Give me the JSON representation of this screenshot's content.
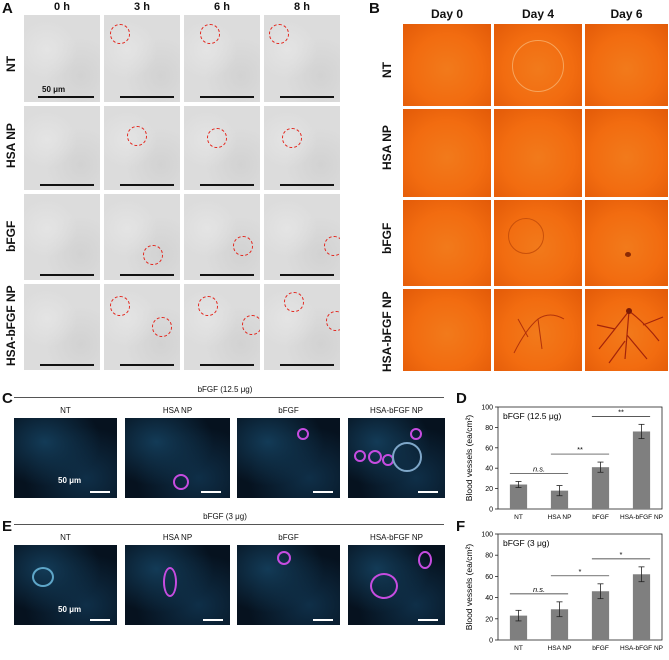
{
  "panelA": {
    "label": "A",
    "columns": [
      "0 h",
      "3 h",
      "6 h",
      "8 h"
    ],
    "rows": [
      "NT",
      "HSA NP",
      "bFGF",
      "HSA-bFGF NP"
    ],
    "scale_label": "50 μm"
  },
  "panelB": {
    "label": "B",
    "columns": [
      "Day 0",
      "Day 4",
      "Day 6"
    ],
    "rows": [
      "NT",
      "HSA NP",
      "bFGF",
      "HSA-bFGF NP"
    ]
  },
  "panelC": {
    "label": "C",
    "header": "bFGF (12.5 μg)",
    "columns": [
      "NT",
      "HSA NP",
      "bFGF",
      "HSA-bFGF NP"
    ],
    "scale_label": "50 μm"
  },
  "panelE": {
    "label": "E",
    "header": "bFGF (3 μg)",
    "columns": [
      "NT",
      "HSA NP",
      "bFGF",
      "HSA-bFGF NP"
    ],
    "scale_label": "50 μm"
  },
  "chart_data": [
    {
      "panel": "D",
      "type": "bar",
      "title": "bFGF (12.5 μg)",
      "ylabel": "Blood vessels (ea/cm²)",
      "categories": [
        "NT",
        "HSA NP",
        "bFGF",
        "HSA-bFGF NP"
      ],
      "values": [
        24,
        18,
        41,
        76
      ],
      "errors": [
        3,
        5,
        5,
        7
      ],
      "ylim": [
        0,
        100
      ],
      "yticks": [
        0,
        20,
        40,
        60,
        80,
        100
      ],
      "annotations": [
        {
          "from": 0,
          "to": 1,
          "text": "n.s."
        },
        {
          "from": 1,
          "to": 2,
          "text": "**"
        },
        {
          "from": 2,
          "to": 3,
          "text": "**"
        }
      ]
    },
    {
      "panel": "F",
      "type": "bar",
      "title": "bFGF (3 μg)",
      "ylabel": "Blood vessels (ea/cm²)",
      "categories": [
        "NT",
        "HSA NP",
        "bFGF",
        "HSA-bFGF NP"
      ],
      "values": [
        23,
        29,
        46,
        62
      ],
      "errors": [
        5,
        7,
        7,
        7
      ],
      "ylim": [
        0,
        100
      ],
      "yticks": [
        0,
        20,
        40,
        60,
        80,
        100
      ],
      "annotations": [
        {
          "from": 0,
          "to": 1,
          "text": "n.s."
        },
        {
          "from": 1,
          "to": 2,
          "text": "*"
        },
        {
          "from": 2,
          "to": 3,
          "text": "*"
        }
      ]
    }
  ]
}
